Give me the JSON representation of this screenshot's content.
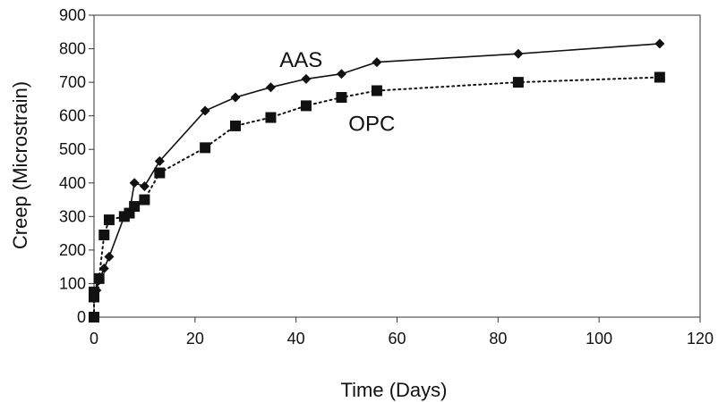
{
  "chart_data": {
    "type": "line",
    "title": "",
    "xlabel": "Time (Days)",
    "ylabel": "Creep (Microstrain)",
    "xlim": [
      0,
      120
    ],
    "ylim": [
      0,
      900
    ],
    "x_ticks": [
      "0",
      "20",
      "40",
      "60",
      "80",
      "100",
      "120"
    ],
    "y_ticks": [
      "0",
      "100",
      "200",
      "300",
      "400",
      "500",
      "600",
      "700",
      "800",
      "900"
    ],
    "grid": false,
    "legend": "none",
    "series": [
      {
        "name": "AAS",
        "line": "solid",
        "marker": "diamond",
        "color": "#111111",
        "x": [
          0,
          0.5,
          1,
          2,
          3,
          6,
          7,
          8,
          10,
          13,
          22,
          28,
          35,
          42,
          49,
          56,
          84,
          112
        ],
        "y": [
          55,
          80,
          110,
          145,
          180,
          300,
          310,
          400,
          390,
          465,
          615,
          655,
          685,
          710,
          725,
          760,
          785,
          815
        ]
      },
      {
        "name": "OPC",
        "line": "dotted",
        "marker": "square",
        "color": "#111111",
        "x": [
          0,
          0,
          0,
          1,
          2,
          3,
          6,
          7,
          8,
          10,
          13,
          22,
          28,
          35,
          42,
          49,
          56,
          84,
          112
        ],
        "y": [
          0,
          60,
          75,
          115,
          245,
          290,
          300,
          310,
          330,
          350,
          430,
          505,
          570,
          595,
          630,
          655,
          675,
          700,
          715
        ]
      }
    ],
    "annotations": [
      {
        "text": "AAS",
        "x": 41,
        "y": 745,
        "series": "AAS"
      },
      {
        "text": "OPC",
        "x": 55,
        "y": 555,
        "series": "OPC"
      }
    ]
  }
}
